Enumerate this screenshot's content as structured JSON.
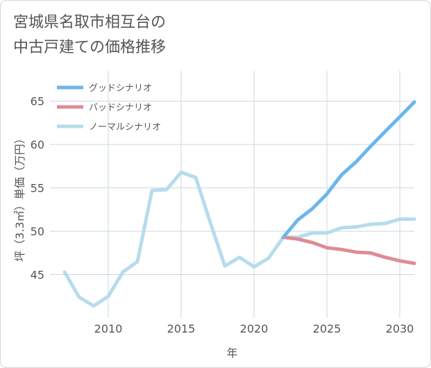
{
  "title_lines": [
    "宮城県名取市相互台の",
    "中古戸建ての価格推移"
  ],
  "chart_data": {
    "type": "line",
    "title": "宮城県名取市相互台の中古戸建ての価格推移",
    "xlabel": "年",
    "ylabel": "坪（3.3㎡）単価（万円）",
    "xlim": [
      2006,
      2031
    ],
    "ylim": [
      40,
      68.5
    ],
    "xticks": [
      2010,
      2015,
      2020,
      2025,
      2030
    ],
    "yticks": [
      45,
      50,
      55,
      60,
      65
    ],
    "grid": true,
    "legend_position": "top-left",
    "series": [
      {
        "name": "グッドシナリオ",
        "color": "#6bb6ec",
        "x": [
          2022,
          2023,
          2024,
          2025,
          2026,
          2027,
          2028,
          2029,
          2030,
          2031
        ],
        "values": [
          49.3,
          51.3,
          52.6,
          54.3,
          56.5,
          58.0,
          59.8,
          61.5,
          63.2,
          64.9
        ]
      },
      {
        "name": "バッドシナリオ",
        "color": "#e08b93",
        "x": [
          2022,
          2023,
          2024,
          2025,
          2026,
          2027,
          2028,
          2029,
          2030,
          2031
        ],
        "values": [
          49.3,
          49.1,
          48.7,
          48.1,
          47.9,
          47.6,
          47.5,
          47.0,
          46.6,
          46.3
        ]
      },
      {
        "name": "ノーマルシナリオ",
        "color": "#b5dcec",
        "x": [
          2007,
          2008,
          2009,
          2010,
          2011,
          2012,
          2013,
          2014,
          2015,
          2016,
          2017,
          2018,
          2019,
          2020,
          2021,
          2022,
          2023,
          2024,
          2025,
          2026,
          2027,
          2028,
          2029,
          2030,
          2031
        ],
        "values": [
          45.3,
          42.4,
          41.4,
          42.5,
          45.3,
          46.5,
          54.7,
          54.8,
          56.8,
          56.2,
          51.0,
          46.0,
          47.0,
          45.9,
          46.9,
          49.3,
          49.3,
          49.8,
          49.8,
          50.4,
          50.5,
          50.8,
          50.9,
          51.4,
          51.4
        ]
      }
    ]
  }
}
